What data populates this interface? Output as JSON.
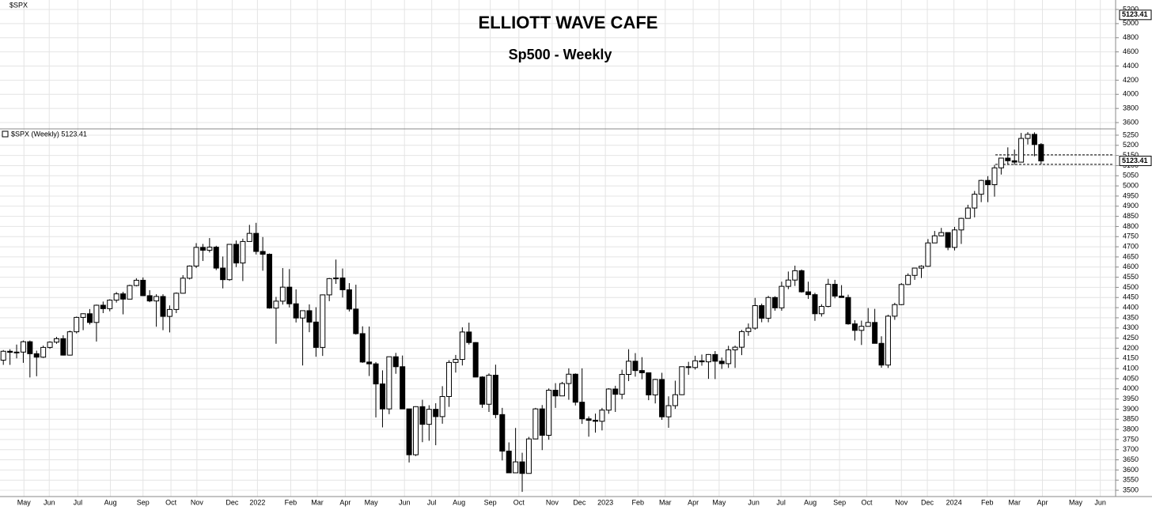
{
  "chart_data": [
    {
      "type": "candlestick",
      "title": "ELLIOTT WAVE CAFE",
      "subtitle": "Sp500 - Weekly",
      "legend": "$SPX (Weekly) 5123.41",
      "last_value": 5123.41,
      "grid": true,
      "ylim": [
        3469,
        5281
      ],
      "yticks": [
        3500,
        3550,
        3600,
        3650,
        3700,
        3750,
        3800,
        3850,
        3900,
        3950,
        4000,
        4050,
        4100,
        4150,
        4200,
        4250,
        4300,
        4350,
        4400,
        4450,
        4500,
        4550,
        4600,
        4650,
        4700,
        4750,
        4800,
        4850,
        4900,
        4950,
        5000,
        5050,
        5100,
        5150,
        5200,
        5250
      ],
      "xlim": [
        -0.5,
        167.2
      ],
      "xticks": [
        {
          "value": 3.1,
          "label": "May"
        },
        {
          "value": 6.9,
          "label": "Jun"
        },
        {
          "value": 11.2,
          "label": "Jul"
        },
        {
          "value": 16.1,
          "label": "Aug"
        },
        {
          "value": 21.0,
          "label": "Sep"
        },
        {
          "value": 25.2,
          "label": "Oct"
        },
        {
          "value": 29.1,
          "label": "Nov"
        },
        {
          "value": 34.4,
          "label": "Dec"
        },
        {
          "value": 38.2,
          "label": "2022"
        },
        {
          "value": 43.2,
          "label": "Feb"
        },
        {
          "value": 47.2,
          "label": "Mar"
        },
        {
          "value": 51.4,
          "label": "Apr"
        },
        {
          "value": 55.3,
          "label": "May"
        },
        {
          "value": 60.3,
          "label": "Jun"
        },
        {
          "value": 64.4,
          "label": "Jul"
        },
        {
          "value": 68.5,
          "label": "Aug"
        },
        {
          "value": 73.2,
          "label": "Sep"
        },
        {
          "value": 77.5,
          "label": "Oct"
        },
        {
          "value": 82.5,
          "label": "Nov"
        },
        {
          "value": 86.6,
          "label": "Dec"
        },
        {
          "value": 90.5,
          "label": "2023"
        },
        {
          "value": 95.4,
          "label": "Feb"
        },
        {
          "value": 99.5,
          "label": "Mar"
        },
        {
          "value": 103.7,
          "label": "Apr"
        },
        {
          "value": 107.6,
          "label": "May"
        },
        {
          "value": 112.8,
          "label": "Jun"
        },
        {
          "value": 116.9,
          "label": "Jul"
        },
        {
          "value": 121.3,
          "label": "Aug"
        },
        {
          "value": 125.7,
          "label": "Sep"
        },
        {
          "value": 129.8,
          "label": "Oct"
        },
        {
          "value": 135.0,
          "label": "Nov"
        },
        {
          "value": 138.9,
          "label": "Dec"
        },
        {
          "value": 142.9,
          "label": "2024"
        },
        {
          "value": 147.9,
          "label": "Feb"
        },
        {
          "value": 152.0,
          "label": "Mar"
        },
        {
          "value": 156.2,
          "label": "Apr"
        },
        {
          "value": 161.2,
          "label": "May"
        },
        {
          "value": 164.9,
          "label": "Jun"
        }
      ],
      "hlines": [
        5153,
        5106
      ],
      "candles": [
        [
          4141,
          4191,
          4118,
          4185
        ],
        [
          4185,
          4195,
          4118,
          4180
        ],
        [
          4180,
          4218,
          4150,
          4181
        ],
        [
          4181,
          4238,
          4128,
          4232
        ],
        [
          4232,
          4238,
          4056,
          4173
        ],
        [
          4173,
          4188,
          4062,
          4156
        ],
        [
          4156,
          4213,
          4152,
          4204
        ],
        [
          4204,
          4234,
          4197,
          4230
        ],
        [
          4230,
          4256,
          4222,
          4247
        ],
        [
          4247,
          4264,
          4164,
          4166
        ],
        [
          4166,
          4287,
          4164,
          4281
        ],
        [
          4281,
          4356,
          4273,
          4352
        ],
        [
          4352,
          4372,
          4289,
          4370
        ],
        [
          4370,
          4393,
          4317,
          4327
        ],
        [
          4327,
          4415,
          4233,
          4412
        ],
        [
          4412,
          4430,
          4373,
          4395
        ],
        [
          4395,
          4441,
          4382,
          4437
        ],
        [
          4437,
          4477,
          4425,
          4468
        ],
        [
          4468,
          4478,
          4367,
          4442
        ],
        [
          4442,
          4513,
          4441,
          4509
        ],
        [
          4509,
          4545,
          4505,
          4535
        ],
        [
          4535,
          4549,
          4457,
          4459
        ],
        [
          4459,
          4486,
          4427,
          4433
        ],
        [
          4433,
          4466,
          4306,
          4455
        ],
        [
          4455,
          4466,
          4289,
          4357
        ],
        [
          4357,
          4411,
          4278,
          4391
        ],
        [
          4391,
          4475,
          4373,
          4471
        ],
        [
          4471,
          4560,
          4469,
          4545
        ],
        [
          4545,
          4608,
          4539,
          4605
        ],
        [
          4605,
          4718,
          4595,
          4697
        ],
        [
          4697,
          4714,
          4630,
          4683
        ],
        [
          4683,
          4743,
          4672,
          4698
        ],
        [
          4698,
          4705,
          4585,
          4595
        ],
        [
          4595,
          4652,
          4495,
          4538
        ],
        [
          4538,
          4713,
          4532,
          4712
        ],
        [
          4712,
          4731,
          4600,
          4620
        ],
        [
          4620,
          4740,
          4531,
          4726
        ],
        [
          4726,
          4808,
          4726,
          4766
        ],
        [
          4766,
          4818,
          4662,
          4677
        ],
        [
          4677,
          4748,
          4582,
          4663
        ],
        [
          4663,
          4667,
          4395,
          4398
        ],
        [
          4398,
          4453,
          4222,
          4432
        ],
        [
          4432,
          4595,
          4415,
          4501
        ],
        [
          4501,
          4590,
          4401,
          4419
        ],
        [
          4419,
          4490,
          4327,
          4349
        ],
        [
          4349,
          4385,
          4115,
          4385
        ],
        [
          4385,
          4416,
          4279,
          4329
        ],
        [
          4329,
          4402,
          4158,
          4204
        ],
        [
          4204,
          4465,
          4162,
          4463
        ],
        [
          4463,
          4546,
          4432,
          4543
        ],
        [
          4543,
          4637,
          4517,
          4546
        ],
        [
          4546,
          4593,
          4450,
          4488
        ],
        [
          4488,
          4521,
          4381,
          4393
        ],
        [
          4393,
          4513,
          4267,
          4272
        ],
        [
          4272,
          4308,
          4128,
          4132
        ],
        [
          4132,
          4307,
          4063,
          4123
        ],
        [
          4123,
          4132,
          3859,
          4024
        ],
        [
          4024,
          4091,
          3810,
          3901
        ],
        [
          3901,
          4158,
          3875,
          4158
        ],
        [
          4158,
          4177,
          4074,
          4109
        ],
        [
          4109,
          4164,
          3901,
          3901
        ],
        [
          3901,
          3901,
          3637,
          3675
        ],
        [
          3675,
          3914,
          3669,
          3912
        ],
        [
          3912,
          3946,
          3737,
          3825
        ],
        [
          3825,
          3919,
          3744,
          3899
        ],
        [
          3899,
          3929,
          3722,
          3863
        ],
        [
          3863,
          4013,
          3828,
          3962
        ],
        [
          3962,
          4141,
          3911,
          4130
        ],
        [
          4130,
          4167,
          4080,
          4145
        ],
        [
          4145,
          4303,
          4115,
          4280
        ],
        [
          4280,
          4326,
          4218,
          4228
        ],
        [
          4228,
          4230,
          4057,
          4058
        ],
        [
          4058,
          4062,
          3906,
          3924
        ],
        [
          3924,
          4076,
          3886,
          4067
        ],
        [
          4067,
          4119,
          3855,
          3873
        ],
        [
          3873,
          3906,
          3647,
          3693
        ],
        [
          3693,
          3736,
          3585,
          3586
        ],
        [
          3586,
          3807,
          3585,
          3640
        ],
        [
          3640,
          3685,
          3492,
          3583
        ],
        [
          3583,
          3763,
          3586,
          3753
        ],
        [
          3753,
          3906,
          3751,
          3901
        ],
        [
          3901,
          3920,
          3698,
          3771
        ],
        [
          3771,
          4002,
          3749,
          3993
        ],
        [
          3993,
          4028,
          3906,
          3965
        ],
        [
          3965,
          4034,
          3965,
          4026
        ],
        [
          4026,
          4101,
          3946,
          4072
        ],
        [
          4072,
          4076,
          3918,
          3934
        ],
        [
          3934,
          4101,
          3827,
          3852
        ],
        [
          3852,
          3864,
          3764,
          3845
        ],
        [
          3845,
          3878,
          3784,
          3840
        ],
        [
          3840,
          3906,
          3795,
          3895
        ],
        [
          3895,
          4003,
          3877,
          3999
        ],
        [
          3999,
          4015,
          3886,
          3973
        ],
        [
          3973,
          4094,
          3949,
          4071
        ],
        [
          4071,
          4195,
          4038,
          4136
        ],
        [
          4136,
          4176,
          4060,
          4090
        ],
        [
          4090,
          4156,
          4047,
          4079
        ],
        [
          4079,
          4079,
          3944,
          3970
        ],
        [
          3970,
          4049,
          3928,
          4046
        ],
        [
          4046,
          4079,
          3847,
          3862
        ],
        [
          3862,
          3963,
          3808,
          3917
        ],
        [
          3917,
          4040,
          3901,
          3971
        ],
        [
          3971,
          4110,
          3969,
          4109
        ],
        [
          4109,
          4133,
          4069,
          4105
        ],
        [
          4105,
          4163,
          4095,
          4138
        ],
        [
          4138,
          4169,
          4114,
          4133
        ],
        [
          4133,
          4171,
          4049,
          4169
        ],
        [
          4169,
          4186,
          4048,
          4136
        ],
        [
          4136,
          4154,
          4098,
          4124
        ],
        [
          4124,
          4212,
          4103,
          4192
        ],
        [
          4192,
          4213,
          4103,
          4205
        ],
        [
          4205,
          4290,
          4166,
          4282
        ],
        [
          4282,
          4322,
          4261,
          4299
        ],
        [
          4299,
          4448,
          4291,
          4410
        ],
        [
          4410,
          4420,
          4328,
          4348
        ],
        [
          4348,
          4458,
          4328,
          4450
        ],
        [
          4450,
          4456,
          4385,
          4399
        ],
        [
          4399,
          4528,
          4385,
          4505
        ],
        [
          4505,
          4578,
          4491,
          4536
        ],
        [
          4536,
          4607,
          4507,
          4582
        ],
        [
          4582,
          4588,
          4474,
          4478
        ],
        [
          4478,
          4528,
          4443,
          4464
        ],
        [
          4464,
          4473,
          4335,
          4370
        ],
        [
          4370,
          4417,
          4356,
          4406
        ],
        [
          4406,
          4542,
          4402,
          4515
        ],
        [
          4515,
          4537,
          4446,
          4457
        ],
        [
          4457,
          4511,
          4450,
          4450
        ],
        [
          4450,
          4464,
          4316,
          4320
        ],
        [
          4320,
          4338,
          4238,
          4288
        ],
        [
          4288,
          4336,
          4216,
          4308
        ],
        [
          4308,
          4398,
          4307,
          4327
        ],
        [
          4327,
          4394,
          4223,
          4224
        ],
        [
          4224,
          4259,
          4104,
          4117
        ],
        [
          4117,
          4365,
          4103,
          4358
        ],
        [
          4358,
          4424,
          4340,
          4415
        ],
        [
          4415,
          4521,
          4412,
          4514
        ],
        [
          4514,
          4569,
          4511,
          4559
        ],
        [
          4559,
          4595,
          4537,
          4595
        ],
        [
          4595,
          4609,
          4546,
          4604
        ],
        [
          4604,
          4738,
          4601,
          4719
        ],
        [
          4719,
          4778,
          4719,
          4754
        ],
        [
          4754,
          4793,
          4752,
          4770
        ],
        [
          4770,
          4770,
          4683,
          4697
        ],
        [
          4697,
          4798,
          4682,
          4783
        ],
        [
          4783,
          4843,
          4714,
          4840
        ],
        [
          4840,
          4907,
          4840,
          4891
        ],
        [
          4891,
          4975,
          4845,
          4959
        ],
        [
          4959,
          5030,
          4920,
          5027
        ],
        [
          5027,
          5048,
          4920,
          5006
        ],
        [
          5006,
          5104,
          4947,
          5089
        ],
        [
          5089,
          5138,
          5056,
          5137
        ],
        [
          5137,
          5190,
          5105,
          5124
        ],
        [
          5124,
          5179,
          5104,
          5117
        ],
        [
          5117,
          5261,
          5116,
          5234
        ],
        [
          5234,
          5265,
          5204,
          5254
        ],
        [
          5254,
          5264,
          5146,
          5204
        ],
        [
          5204,
          5211,
          5107,
          5123
        ]
      ]
    },
    {
      "type": "pane",
      "legend": "$SPX",
      "last_value": 5123.41,
      "grid": true,
      "ylim": [
        3511,
        5334
      ],
      "yticks": [
        3600,
        3800,
        4000,
        4200,
        4400,
        4600,
        4800,
        5000,
        5200
      ]
    }
  ]
}
